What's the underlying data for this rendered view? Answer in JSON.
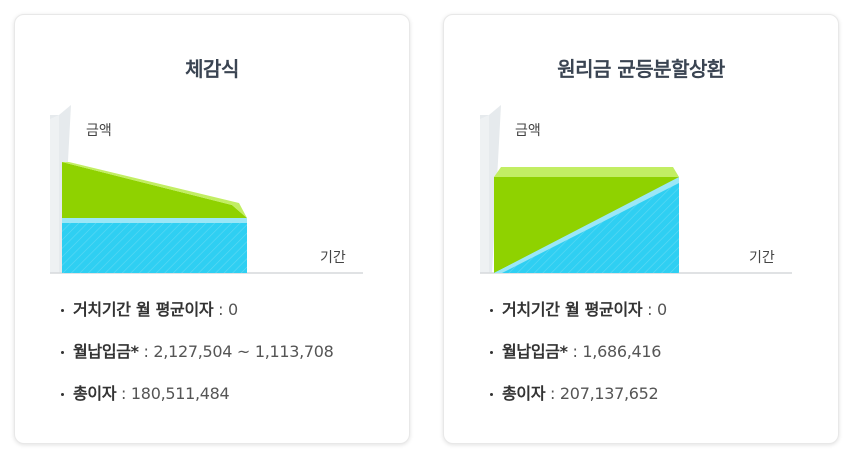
{
  "colors": {
    "principal": "#2fcff2",
    "principal_edge": "#9be7f7",
    "interest": "#8fd200",
    "interest_top": "#c2ee63",
    "axis_bar": "#e6eaed",
    "axis_line": "#d5d9dc"
  },
  "cards": [
    {
      "title": "체감식",
      "chart_data": {
        "type": "area",
        "ylabel": "금액",
        "xlabel": "기간",
        "x": [
          0,
          1
        ],
        "series": [
          {
            "name": "",
            "values": [
              0.6,
              0.6
            ]
          },
          {
            "name": "",
            "values": [
              1.15,
              0.6
            ]
          }
        ],
        "ylim": [
          0,
          1.15
        ]
      },
      "items": [
        {
          "label": "거치기간 월 평균이자",
          "value": " : 0"
        },
        {
          "label": "월납입금*",
          "value": " : 2,127,504 ~ 1,113,708"
        },
        {
          "label": "총이자",
          "value": " : 180,511,484"
        }
      ]
    },
    {
      "title": "원리금 균등분할상환",
      "chart_data": {
        "type": "area",
        "ylabel": "금액",
        "xlabel": "기간",
        "x": [
          0,
          1
        ],
        "series": [
          {
            "name": "",
            "values": [
              0.0,
              1.0
            ]
          },
          {
            "name": "",
            "values": [
              1.0,
              0.0
            ]
          }
        ],
        "ylim": [
          0,
          1.0
        ]
      },
      "items": [
        {
          "label": "거치기간 월 평균이자",
          "value": " : 0"
        },
        {
          "label": "월납입금*",
          "value": " : 1,686,416"
        },
        {
          "label": "총이자",
          "value": " : 207,137,652"
        }
      ]
    }
  ]
}
